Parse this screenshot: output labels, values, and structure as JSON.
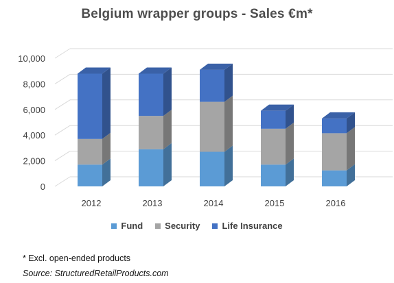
{
  "chart_data": {
    "type": "bar",
    "stacked": true,
    "title": "Belgium wrapper groups - Sales €m*",
    "categories": [
      "2012",
      "2013",
      "2014",
      "2015",
      "2016"
    ],
    "series": [
      {
        "name": "Fund",
        "color": "#5b9bd5",
        "values": [
          1700,
          2900,
          2700,
          1700,
          1250
        ]
      },
      {
        "name": "Security",
        "color": "#a5a5a5",
        "values": [
          2000,
          2600,
          3900,
          2800,
          2900
        ]
      },
      {
        "name": "Life Insurance",
        "color": "#4472c4",
        "values": [
          5100,
          3300,
          2500,
          1400,
          1150
        ]
      }
    ],
    "ylim": [
      0,
      10000
    ],
    "yticks": [
      "0",
      "2,000",
      "4,000",
      "6,000",
      "8,000",
      "10,000"
    ],
    "grid": true,
    "legend_position": "bottom"
  },
  "footnote": "* Excl. open-ended products",
  "source": "Source: StructuredRetailProducts.com"
}
